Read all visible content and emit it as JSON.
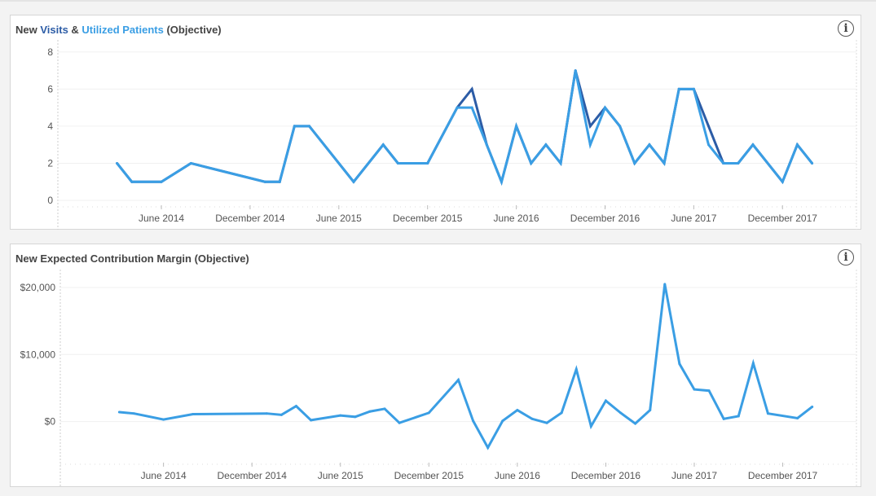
{
  "charts_header": {
    "chart1_title_prefix": "New ",
    "chart1_title_visits": "Visits",
    "chart1_title_amp": " & ",
    "chart1_title_utilized": "Utilized Patients",
    "chart1_title_suffix": " (Objective)",
    "chart2_title": "New Expected Contribution Margin (Objective)",
    "info_icon": "i"
  },
  "chart_data": [
    {
      "type": "line",
      "title": "New Visits & Utilized Patients (Objective)",
      "xlim": [
        "2013-11",
        "2018-05"
      ],
      "ylim": [
        0,
        8.3
      ],
      "yticks": [
        0,
        2,
        4,
        6,
        8
      ],
      "ytick_labels": [
        "0",
        "2",
        "4",
        "6",
        "8"
      ],
      "xticks": [
        "2014-06",
        "2014-12",
        "2015-06",
        "2015-12",
        "2016-06",
        "2016-12",
        "2017-06",
        "2017-12"
      ],
      "xtick_labels": [
        "June 2014",
        "December 2014",
        "June 2015",
        "December 2015",
        "June 2016",
        "December 2016",
        "June 2017",
        "December 2017"
      ],
      "grid": true,
      "x": [
        "2014-03",
        "2014-04",
        "2014-06",
        "2014-08",
        "2015-01",
        "2015-02",
        "2015-03",
        "2015-04",
        "2015-07",
        "2015-09",
        "2015-10",
        "2015-12",
        "2016-02",
        "2016-03",
        "2016-04",
        "2016-05",
        "2016-06",
        "2016-07",
        "2016-08",
        "2016-09",
        "2016-10",
        "2016-11",
        "2016-12",
        "2017-01",
        "2017-02",
        "2017-03",
        "2017-04",
        "2017-05",
        "2017-06",
        "2017-07",
        "2017-08",
        "2017-09",
        "2017-10",
        "2017-12",
        "2018-01",
        "2018-02"
      ],
      "series": [
        {
          "name": "Visits",
          "color": "#2c5ca6",
          "values": [
            2,
            1,
            1,
            2,
            1,
            1,
            4,
            4,
            1,
            3,
            2,
            2,
            5,
            6,
            3,
            1,
            4,
            2,
            3,
            2,
            7,
            4,
            5,
            4,
            2,
            3,
            2,
            6,
            6,
            4,
            2,
            2,
            3,
            1,
            3,
            2
          ]
        },
        {
          "name": "Utilized Patients",
          "color": "#3a9ee4",
          "values": [
            2,
            1,
            1,
            2,
            1,
            1,
            4,
            4,
            1,
            3,
            2,
            2,
            5,
            5,
            3,
            1,
            4,
            2,
            3,
            2,
            7,
            3,
            5,
            4,
            2,
            3,
            2,
            6,
            6,
            3,
            2,
            2,
            3,
            1,
            3,
            2
          ]
        }
      ]
    },
    {
      "type": "line",
      "title": "New Expected Contribution Margin (Objective)",
      "xlim": [
        "2013-11",
        "2018-05"
      ],
      "ylim": [
        -5400,
        21700
      ],
      "yticks": [
        0,
        10000,
        20000
      ],
      "ytick_labels": [
        "$0",
        "$10,000",
        "$20,000"
      ],
      "xticks": [
        "2014-06",
        "2014-12",
        "2015-06",
        "2015-12",
        "2016-06",
        "2016-12",
        "2017-06",
        "2017-12"
      ],
      "xtick_labels": [
        "June 2014",
        "December 2014",
        "June 2015",
        "December 2015",
        "June 2016",
        "December 2016",
        "June 2017",
        "December 2017"
      ],
      "grid": true,
      "x": [
        "2014-03",
        "2014-04",
        "2014-06",
        "2014-08",
        "2015-01",
        "2015-02",
        "2015-03",
        "2015-04",
        "2015-06",
        "2015-07",
        "2015-08",
        "2015-09",
        "2015-10",
        "2015-12",
        "2016-02",
        "2016-03",
        "2016-04",
        "2016-05",
        "2016-06",
        "2016-07",
        "2016-08",
        "2016-09",
        "2016-10",
        "2016-11",
        "2016-12",
        "2017-01",
        "2017-02",
        "2017-03",
        "2017-04",
        "2017-05",
        "2017-06",
        "2017-07",
        "2017-08",
        "2017-09",
        "2017-10",
        "2017-11",
        "2018-01",
        "2018-02"
      ],
      "series": [
        {
          "color": "#3a9ee4",
          "values": [
            1400,
            1200,
            300,
            1100,
            1200,
            1000,
            2300,
            200,
            900,
            700,
            1500,
            1900,
            -200,
            1300,
            6200,
            100,
            -3900,
            100,
            1700,
            400,
            -200,
            1300,
            7800,
            -700,
            3100,
            1300,
            -300,
            1700,
            20500,
            8600,
            4800,
            4600,
            400,
            800,
            8700,
            1200,
            500,
            2200
          ]
        }
      ]
    }
  ]
}
